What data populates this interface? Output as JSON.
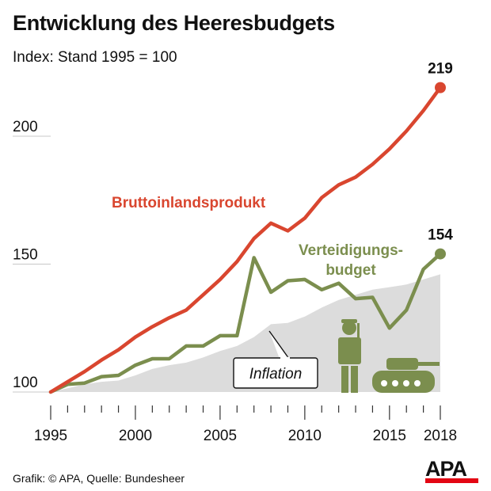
{
  "header": {
    "title": "Entwicklung des Heeresbudgets",
    "subtitle": "Index: Stand 1995 = 100"
  },
  "footer": {
    "credit": "Grafik: © APA, Quelle: Bundesheer"
  },
  "logo": {
    "text": "APA"
  },
  "colors": {
    "gdp": "#d9462f",
    "defense": "#7b8e4e",
    "inflation": "#dcdcdc",
    "axis": "#333333",
    "grid": "#c8c8c8"
  },
  "chart_data": {
    "type": "line",
    "title": "Entwicklung des Heeresbudgets",
    "subtitle": "Index: Stand 1995 = 100",
    "xlabel": "",
    "ylabel": "",
    "x": [
      1995,
      1996,
      1997,
      1998,
      1999,
      2000,
      2001,
      2002,
      2003,
      2004,
      2005,
      2006,
      2007,
      2008,
      2009,
      2010,
      2011,
      2012,
      2013,
      2014,
      2015,
      2016,
      2017,
      2018
    ],
    "x_tick_labels": [
      "1995",
      "2000",
      "2005",
      "2010",
      "2015",
      "2018"
    ],
    "x_ticks": [
      1995,
      2000,
      2005,
      2010,
      2015,
      2018
    ],
    "y_ticks": [
      100,
      150,
      200
    ],
    "y_tick_labels": [
      "100",
      "150",
      "200"
    ],
    "ylim": [
      100,
      225
    ],
    "series": [
      {
        "name": "Bruttoinlandsprodukt",
        "type": "line",
        "values": [
          100,
          104,
          108,
          112.5,
          116.5,
          121.5,
          125.5,
          129,
          132,
          138,
          144,
          151,
          160,
          166,
          163,
          168,
          176,
          181,
          184,
          189,
          195,
          202,
          210,
          219
        ]
      },
      {
        "name": "Verteidigungsbudget",
        "label_lines": [
          "Verteidigungs-",
          "budget"
        ],
        "type": "line",
        "values": [
          100,
          103,
          103.5,
          106,
          106.5,
          110.5,
          113,
          113,
          118,
          118,
          122,
          122,
          152.5,
          139,
          143.5,
          144,
          140,
          142.5,
          136.5,
          137,
          125,
          132,
          148,
          154
        ]
      },
      {
        "name": "Inflation",
        "type": "area",
        "values": [
          100,
          101.5,
          103,
          104,
          104.5,
          106.5,
          109,
          110.5,
          111.5,
          113.5,
          116,
          118,
          121.5,
          126.5,
          127,
          129.5,
          133,
          136,
          138,
          140,
          141,
          142,
          144,
          146
        ]
      }
    ],
    "end_labels": [
      {
        "series": "Bruttoinlandsprodukt",
        "text": "219"
      },
      {
        "series": "Verteidigungsbudget",
        "text": "154"
      }
    ],
    "annotations": [
      {
        "text": "Inflation",
        "points_to": "Inflation",
        "style": "callout-box"
      }
    ],
    "grid": false,
    "legend": "inline"
  }
}
